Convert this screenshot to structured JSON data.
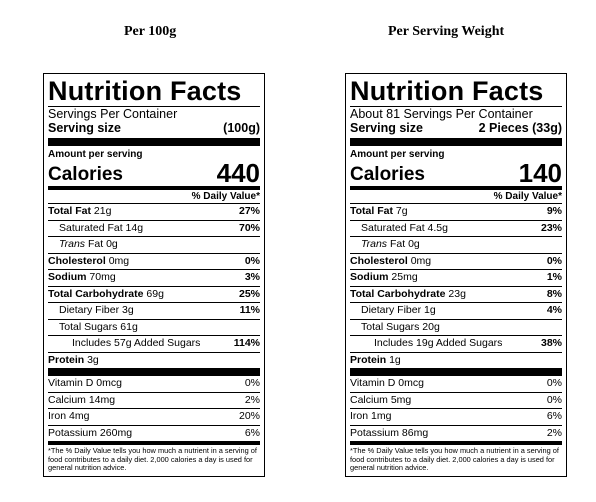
{
  "columns": [
    {
      "heading": "Per 100g",
      "title": "Nutrition Facts",
      "servings_per_container": "Servings Per Container",
      "serving_size_label": "Serving size",
      "serving_size_value": "(100g)",
      "amount_per_serving": "Amount per serving",
      "calories_label": "Calories",
      "calories_value": "440",
      "dv_header": "% Daily Value*",
      "rows": {
        "total_fat": {
          "label": "Total Fat",
          "amount": "21g",
          "pct": "27%"
        },
        "sat_fat": {
          "label": "Saturated Fat",
          "amount": "14g",
          "pct": "70%"
        },
        "trans_fat": {
          "label": "Trans",
          "amount": "Fat 0g",
          "pct": ""
        },
        "cholesterol": {
          "label": "Cholesterol",
          "amount": "0mg",
          "pct": "0%"
        },
        "sodium": {
          "label": "Sodium",
          "amount": "70mg",
          "pct": "3%"
        },
        "total_carb": {
          "label": "Total Carbohydrate",
          "amount": "69g",
          "pct": "25%"
        },
        "fiber": {
          "label": "Dietary Fiber",
          "amount": "3g",
          "pct": "11%"
        },
        "total_sugars": {
          "label": "Total Sugars",
          "amount": "61g",
          "pct": ""
        },
        "added_sugars": {
          "label": "Includes 57g Added Sugars",
          "pct": "114%"
        },
        "protein": {
          "label": "Protein",
          "amount": "3g"
        },
        "vitamin_d": {
          "label": "Vitamin D 0mcg",
          "pct": "0%"
        },
        "calcium": {
          "label": "Calcium 14mg",
          "pct": "2%"
        },
        "iron": {
          "label": "Iron 4mg",
          "pct": "20%"
        },
        "potassium": {
          "label": "Potassium 260mg",
          "pct": "6%"
        }
      },
      "footnote": "*The % Daily Value tells you how much a nutrient in a serving of food contributes to a daily diet. 2,000 calories a day is used for general nutrition advice."
    },
    {
      "heading": "Per Serving Weight",
      "title": "Nutrition Facts",
      "servings_per_container": "About 81 Servings Per Container",
      "serving_size_label": "Serving size",
      "serving_size_value": "2 Pieces (33g)",
      "amount_per_serving": "Amount per serving",
      "calories_label": "Calories",
      "calories_value": "140",
      "dv_header": "% Daily Value*",
      "rows": {
        "total_fat": {
          "label": "Total Fat",
          "amount": "7g",
          "pct": "9%"
        },
        "sat_fat": {
          "label": "Saturated Fat",
          "amount": "4.5g",
          "pct": "23%"
        },
        "trans_fat": {
          "label": "Trans",
          "amount": "Fat 0g",
          "pct": ""
        },
        "cholesterol": {
          "label": "Cholesterol",
          "amount": "0mg",
          "pct": "0%"
        },
        "sodium": {
          "label": "Sodium",
          "amount": "25mg",
          "pct": "1%"
        },
        "total_carb": {
          "label": "Total Carbohydrate",
          "amount": "23g",
          "pct": "8%"
        },
        "fiber": {
          "label": "Dietary Fiber",
          "amount": "1g",
          "pct": "4%"
        },
        "total_sugars": {
          "label": "Total Sugars",
          "amount": "20g",
          "pct": ""
        },
        "added_sugars": {
          "label": "Includes 19g Added Sugars",
          "pct": "38%"
        },
        "protein": {
          "label": "Protein",
          "amount": "1g"
        },
        "vitamin_d": {
          "label": "Vitamin D 0mcg",
          "pct": "0%"
        },
        "calcium": {
          "label": "Calcium 5mg",
          "pct": "0%"
        },
        "iron": {
          "label": "Iron 1mg",
          "pct": "6%"
        },
        "potassium": {
          "label": "Potassium 86mg",
          "pct": "2%"
        }
      },
      "footnote": "*The % Daily Value tells you how much a nutrient in a serving of food contributes to a daily diet. 2,000 calories a day is used for general nutrition advice."
    }
  ]
}
